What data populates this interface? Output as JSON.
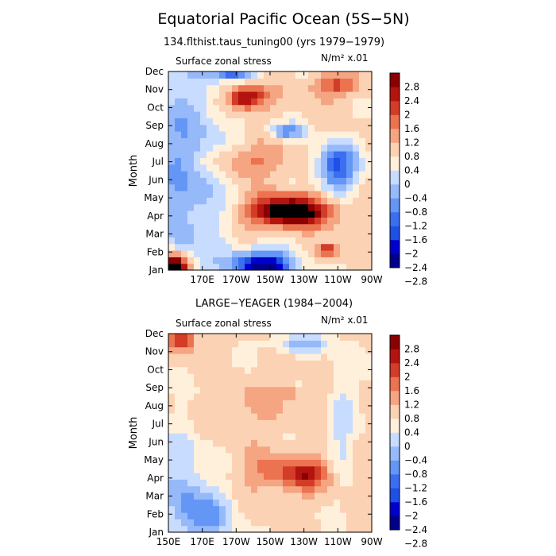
{
  "page": {
    "title": "Equatorial Pacific Ocean (5S−5N)"
  },
  "chart_data": [
    {
      "type": "heatmap",
      "title": "134.flthist.taus_tuning00 (yrs 1979−1979)",
      "subtitle_left": "Surface zonal stress",
      "units_label": "N/m² x.01",
      "xlabel": "",
      "ylabel": "Month",
      "x_ticks": [
        "",
        "170E",
        "170W",
        "150W",
        "130W",
        "110W",
        "90W"
      ],
      "y_ticks": [
        "Jan",
        "Feb",
        "Mar",
        "Apr",
        "May",
        "Jun",
        "Jul",
        "Aug",
        "Sep",
        "Oct",
        "Nov",
        "Dec"
      ],
      "x_range": [
        "150E",
        "90W"
      ],
      "y_range": [
        "Jan",
        "Dec"
      ],
      "colorbar": {
        "levels": [
          -2.8,
          -2.4,
          -2,
          -1.6,
          -1.2,
          -0.8,
          -0.4,
          0,
          0.4,
          0.8,
          1.2,
          1.6,
          2,
          2.4,
          2.8
        ],
        "labels": [
          "2.8",
          "2.4",
          "2",
          "1.6",
          "1.2",
          "0.8",
          "0.4",
          "0",
          "−0.4",
          "−0.8",
          "−1.2",
          "−1.6",
          "−2",
          "−2.4",
          "−2.8"
        ]
      },
      "features": [
        {
          "x": 0.08,
          "y": 0.5,
          "sx": 0.2,
          "sy": 0.6,
          "v": -1.3
        },
        {
          "x": 0.02,
          "y": 0.02,
          "sx": 0.08,
          "sy": 0.06,
          "v": 3.5
        },
        {
          "x": 0.47,
          "y": 0.02,
          "sx": 0.16,
          "sy": 0.08,
          "v": -3.2
        },
        {
          "x": 0.6,
          "y": 0.3,
          "sx": 0.2,
          "sy": 0.08,
          "v": 2.7
        },
        {
          "x": 0.6,
          "y": 0.28,
          "sx": 0.12,
          "sy": 0.05,
          "v": 0.5
        },
        {
          "x": 0.83,
          "y": 0.52,
          "sx": 0.1,
          "sy": 0.12,
          "v": -2.2
        },
        {
          "x": 0.58,
          "y": 0.7,
          "sx": 0.08,
          "sy": 0.04,
          "v": -1.5
        },
        {
          "x": 0.38,
          "y": 0.87,
          "sx": 0.1,
          "sy": 0.06,
          "v": 2.2
        },
        {
          "x": 0.82,
          "y": 0.93,
          "sx": 0.12,
          "sy": 0.06,
          "v": 1.2
        },
        {
          "x": 0.78,
          "y": 0.1,
          "sx": 0.06,
          "sy": 0.04,
          "v": 1.7
        },
        {
          "x": 0.38,
          "y": 0.55,
          "sx": 0.2,
          "sy": 0.08,
          "v": 0.9
        },
        {
          "x": 0.32,
          "y": 0.99,
          "sx": 0.1,
          "sy": 0.03,
          "v": -2.0
        }
      ]
    },
    {
      "type": "heatmap",
      "title": "LARGE−YEAGER (1984−2004)",
      "subtitle_left": "Surface zonal stress",
      "units_label": "N/m² x.01",
      "xlabel": "",
      "ylabel": "Month",
      "x_ticks": [
        "150E",
        "170E",
        "170W",
        "150W",
        "130W",
        "110W",
        "90W"
      ],
      "y_ticks": [
        "Jan",
        "Feb",
        "Mar",
        "Apr",
        "May",
        "Jun",
        "Jul",
        "Aug",
        "Sep",
        "Oct",
        "Nov",
        "Dec"
      ],
      "x_range": [
        "150E",
        "90W"
      ],
      "y_range": [
        "Jan",
        "Dec"
      ],
      "colorbar": {
        "levels": [
          -2.8,
          -2.4,
          -2,
          -1.6,
          -1.2,
          -0.8,
          -0.4,
          0,
          0.4,
          0.8,
          1.2,
          1.6,
          2,
          2.4,
          2.8
        ],
        "labels": [
          "2.8",
          "2.4",
          "2",
          "1.6",
          "1.2",
          "0.8",
          "0.4",
          "0",
          "−0.4",
          "−0.8",
          "−1.2",
          "−1.6",
          "−2",
          "−2.4",
          "−2.8"
        ]
      },
      "features": [
        {
          "x": 0.08,
          "y": 0.2,
          "sx": 0.12,
          "sy": 0.3,
          "v": -1.0
        },
        {
          "x": 0.2,
          "y": 0.08,
          "sx": 0.14,
          "sy": 0.14,
          "v": -1.1
        },
        {
          "x": 0.6,
          "y": 0.3,
          "sx": 0.22,
          "sy": 0.1,
          "v": 1.1
        },
        {
          "x": 0.68,
          "y": 0.29,
          "sx": 0.08,
          "sy": 0.05,
          "v": 0.8
        },
        {
          "x": 0.07,
          "y": 0.97,
          "sx": 0.06,
          "sy": 0.05,
          "v": 1.8
        },
        {
          "x": 0.65,
          "y": 0.95,
          "sx": 0.16,
          "sy": 0.05,
          "v": -1.0
        },
        {
          "x": 0.45,
          "y": 0.65,
          "sx": 0.2,
          "sy": 0.14,
          "v": 0.35
        },
        {
          "x": 0.85,
          "y": 0.55,
          "sx": 0.06,
          "sy": 0.3,
          "v": -0.7
        },
        {
          "x": 0.6,
          "y": 0.7,
          "sx": 0.05,
          "sy": 0.03,
          "v": 0.7
        }
      ]
    }
  ]
}
